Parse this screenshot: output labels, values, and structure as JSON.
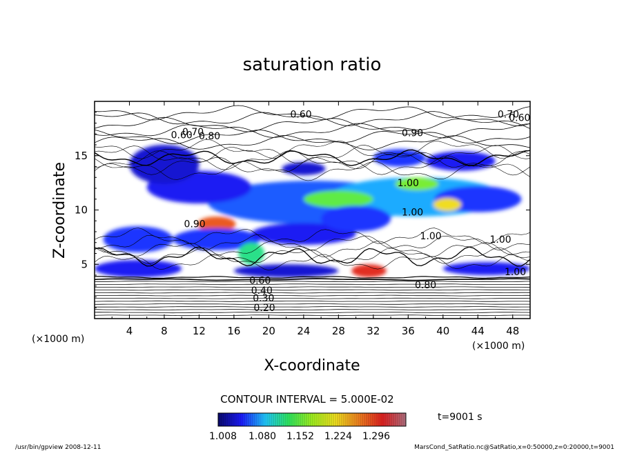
{
  "chart_data": {
    "type": "heatmap",
    "title": "saturation ratio",
    "xlabel": "X-coordinate",
    "ylabel": "Z-coordinate",
    "x_unit_label": "(×1000 m)",
    "y_unit_label": "(×1000 m)",
    "xlim": [
      0,
      50
    ],
    "ylim": [
      0,
      20
    ],
    "x_ticks": [
      4,
      8,
      12,
      16,
      20,
      24,
      28,
      32,
      36,
      40,
      44,
      48
    ],
    "y_ticks": [
      5,
      10,
      15
    ],
    "contour_interval_text": "CONTOUR INTERVAL = 5.000E-02",
    "time_label": "t=9001 s",
    "colorbar": {
      "min": 1.0,
      "max": 1.35,
      "tick_labels": [
        "1.008",
        "1.080",
        "1.152",
        "1.224",
        "1.296"
      ],
      "colors": [
        "#0a0a6e",
        "#1c1cff",
        "#20c8ff",
        "#2ee860",
        "#a0f020",
        "#f0e020",
        "#f08020",
        "#e02020",
        "#b07080"
      ]
    },
    "contour_labels": [
      {
        "x": 10,
        "y": 16.6,
        "text": "0.60"
      },
      {
        "x": 11.3,
        "y": 16.9,
        "text": "0.70"
      },
      {
        "x": 13.2,
        "y": 16.5,
        "text": "0.80"
      },
      {
        "x": 23.7,
        "y": 18.5,
        "text": "0.60"
      },
      {
        "x": 47.5,
        "y": 18.5,
        "text": "0.70"
      },
      {
        "x": 48.8,
        "y": 18.2,
        "text": "0.60"
      },
      {
        "x": 36.5,
        "y": 16.8,
        "text": "0.90"
      },
      {
        "x": 36.0,
        "y": 12.2,
        "text": "1.00"
      },
      {
        "x": 36.5,
        "y": 9.5,
        "text": "1.00"
      },
      {
        "x": 38.6,
        "y": 7.3,
        "text": "1.00"
      },
      {
        "x": 46.6,
        "y": 7.0,
        "text": "1.00"
      },
      {
        "x": 48.3,
        "y": 4.0,
        "text": "1.00"
      },
      {
        "x": 11.5,
        "y": 8.4,
        "text": "0.90"
      },
      {
        "x": 38.0,
        "y": 2.8,
        "text": "0.80"
      },
      {
        "x": 19.0,
        "y": 3.2,
        "text": "0.60"
      },
      {
        "x": 19.2,
        "y": 2.3,
        "text": "0.40"
      },
      {
        "x": 19.4,
        "y": 1.6,
        "text": "0.30"
      },
      {
        "x": 19.5,
        "y": 0.7,
        "text": "0.20"
      }
    ],
    "blobs": [
      {
        "x": 25,
        "y": 10.7,
        "rx": 12,
        "ry": 2.0,
        "v": 1.06
      },
      {
        "x": 37,
        "y": 11.2,
        "rx": 10,
        "ry": 1.8,
        "v": 1.08
      },
      {
        "x": 44,
        "y": 11.0,
        "rx": 5,
        "ry": 1.2,
        "v": 1.05
      },
      {
        "x": 28,
        "y": 11.0,
        "rx": 4,
        "ry": 0.8,
        "v": 1.15
      },
      {
        "x": 40.5,
        "y": 10.5,
        "rx": 1.6,
        "ry": 0.6,
        "v": 1.22
      },
      {
        "x": 37,
        "y": 12.4,
        "rx": 2.5,
        "ry": 0.6,
        "v": 1.16
      },
      {
        "x": 14,
        "y": 8.7,
        "rx": 2.2,
        "ry": 0.7,
        "v": 1.28
      },
      {
        "x": 5,
        "y": 7.3,
        "rx": 4,
        "ry": 1.2,
        "v": 1.05
      },
      {
        "x": 14,
        "y": 7.3,
        "rx": 5,
        "ry": 1.0,
        "v": 1.05
      },
      {
        "x": 31.5,
        "y": 4.4,
        "rx": 2.0,
        "ry": 0.6,
        "v": 1.3
      },
      {
        "x": 24,
        "y": 7.8,
        "rx": 6,
        "ry": 1.0,
        "v": 1.04
      },
      {
        "x": 30,
        "y": 9.2,
        "rx": 4,
        "ry": 1.2,
        "v": 1.05
      },
      {
        "x": 12,
        "y": 12.1,
        "rx": 6,
        "ry": 1.5,
        "v": 1.04
      },
      {
        "x": 42,
        "y": 14.5,
        "rx": 4,
        "ry": 0.9,
        "v": 1.04
      },
      {
        "x": 24,
        "y": 13.8,
        "rx": 2.5,
        "ry": 0.6,
        "v": 1.03
      },
      {
        "x": 5,
        "y": 4.6,
        "rx": 5,
        "ry": 0.8,
        "v": 1.04
      },
      {
        "x": 22,
        "y": 4.4,
        "rx": 6,
        "ry": 0.6,
        "v": 1.03
      },
      {
        "x": 45,
        "y": 4.6,
        "rx": 5,
        "ry": 0.6,
        "v": 1.04
      },
      {
        "x": 8,
        "y": 14.2,
        "rx": 4,
        "ry": 1.8,
        "v": 1.03
      },
      {
        "x": 18,
        "y": 6.0,
        "rx": 1.5,
        "ry": 1.0,
        "v": 1.12
      },
      {
        "x": 35,
        "y": 14.8,
        "rx": 3,
        "ry": 0.8,
        "v": 1.05
      }
    ]
  },
  "footer": {
    "left": "/usr/bin/gpview   2008-12-11",
    "right": "MarsCond_SatRatio.nc@SatRatio,x=0:50000,z=0:20000,t=9001"
  }
}
